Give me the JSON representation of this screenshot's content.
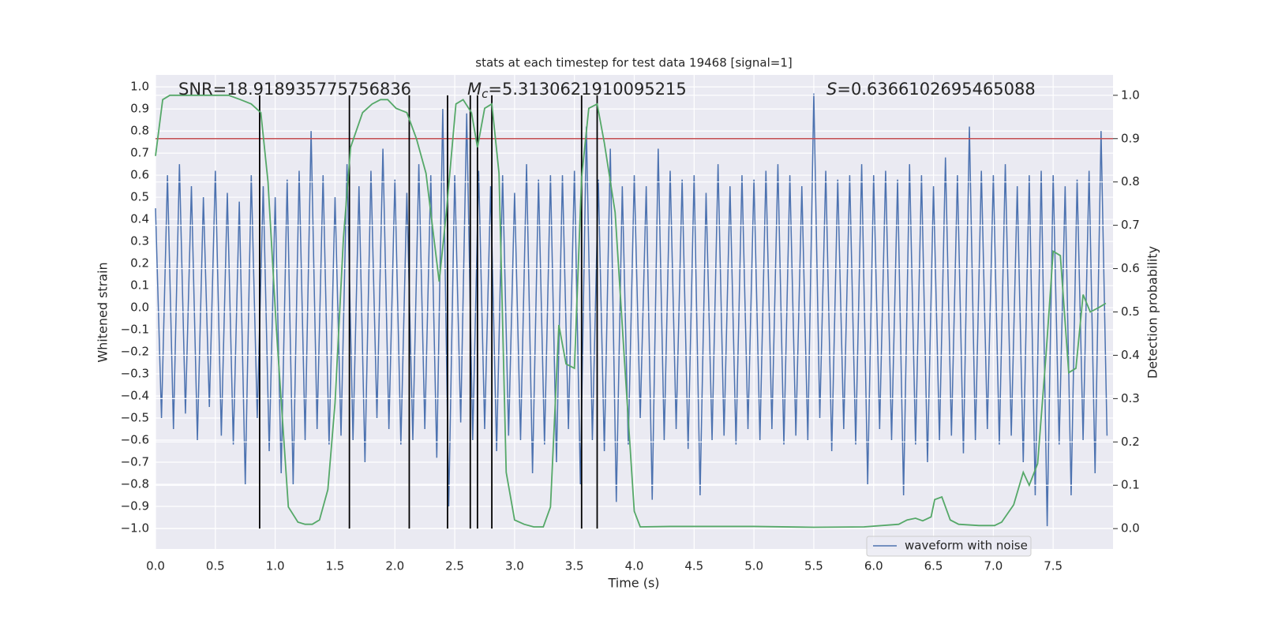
{
  "chart_data": {
    "type": "line",
    "title": "stats at each timestep for test data 19468 [signal=1]",
    "xlabel": "Time (s)",
    "ylabel": "Whitened strain",
    "y2label": "Detection probability",
    "xlim": [
      0,
      8
    ],
    "ylim": [
      -1.093,
      1.054
    ],
    "y2lim": [
      -0.047,
      1.047
    ],
    "grid": true,
    "legend": "best",
    "xticks": [
      {
        "value": 0,
        "label": "0.0"
      },
      0.5,
      {
        "value": 1,
        "label": "1.0"
      },
      1.5,
      {
        "value": 2,
        "label": "2.0"
      },
      2.5,
      {
        "value": 3,
        "label": "3.0"
      },
      3.5,
      {
        "value": 4,
        "label": "4.0"
      },
      4.5,
      {
        "value": 5,
        "label": "5.0"
      },
      5.5,
      {
        "value": 6,
        "label": "6.0"
      },
      6.5,
      {
        "value": 7,
        "label": "7.0"
      },
      7.5
    ],
    "yticks": [
      {
        "value": -1,
        "label": "−1.0"
      },
      {
        "value": -0.9,
        "label": "−0.9"
      },
      {
        "value": -0.8,
        "label": "−0.8"
      },
      {
        "value": -0.7,
        "label": "−0.7"
      },
      {
        "value": -0.6,
        "label": "−0.6"
      },
      {
        "value": -0.5,
        "label": "−0.5"
      },
      {
        "value": -0.4,
        "label": "−0.4"
      },
      {
        "value": -0.3,
        "label": "−0.3"
      },
      {
        "value": -0.2,
        "label": "−0.2"
      },
      {
        "value": -0.1,
        "label": "−0.1"
      },
      {
        "value": 0,
        "label": "0.0"
      },
      0.1,
      0.2,
      0.3,
      0.4,
      0.5,
      0.6,
      0.7,
      0.8,
      0.9,
      {
        "value": 1,
        "label": "1.0"
      }
    ],
    "y2ticks": [
      {
        "value": 0,
        "label": "0.0"
      },
      0.1,
      0.2,
      0.3,
      0.4,
      0.5,
      0.6,
      0.7,
      0.8,
      0.9,
      {
        "value": 1,
        "label": "1.0"
      }
    ],
    "series": [
      {
        "name": "waveform with noise",
        "color": "#4c72b0",
        "x": [
          0,
          0.05,
          0.1,
          0.15,
          0.2,
          0.25,
          0.3,
          0.35,
          0.4,
          0.45,
          0.5,
          0.55,
          0.6,
          0.65,
          0.7,
          0.75,
          0.8,
          0.85,
          0.9,
          0.95,
          1,
          1.05,
          1.1,
          1.15,
          1.2,
          1.25,
          1.3,
          1.35,
          1.4,
          1.45,
          1.5,
          1.55,
          1.6,
          1.65,
          1.7,
          1.75,
          1.8,
          1.85,
          1.9,
          1.95,
          2,
          2.05,
          2.1,
          2.15,
          2.2,
          2.25,
          2.3,
          2.35,
          2.4,
          2.45,
          2.5,
          2.55,
          2.6,
          2.65,
          2.7,
          2.75,
          2.8,
          2.85,
          2.9,
          2.95,
          3,
          3.05,
          3.1,
          3.15,
          3.2,
          3.25,
          3.3,
          3.35,
          3.4,
          3.45,
          3.5,
          3.55,
          3.6,
          3.65,
          3.7,
          3.75,
          3.8,
          3.85,
          3.9,
          3.95,
          4,
          4.05,
          4.1,
          4.15,
          4.2,
          4.25,
          4.3,
          4.35,
          4.4,
          4.45,
          4.5,
          4.55,
          4.6,
          4.65,
          4.7,
          4.75,
          4.8,
          4.85,
          4.9,
          4.95,
          5,
          5.05,
          5.1,
          5.15,
          5.2,
          5.25,
          5.3,
          5.35,
          5.4,
          5.45,
          5.5,
          5.55,
          5.6,
          5.65,
          5.7,
          5.75,
          5.8,
          5.85,
          5.9,
          5.95,
          6,
          6.05,
          6.1,
          6.15,
          6.2,
          6.25,
          6.3,
          6.35,
          6.4,
          6.45,
          6.5,
          6.55,
          6.6,
          6.65,
          6.7,
          6.75,
          6.8,
          6.85,
          6.9,
          6.95,
          7,
          7.05,
          7.1,
          7.15,
          7.2,
          7.25,
          7.3,
          7.35,
          7.4,
          7.45,
          7.5,
          7.55,
          7.6,
          7.65,
          7.7,
          7.75,
          7.8,
          7.85,
          7.9,
          7.95
        ],
        "values": [
          0.45,
          -0.5,
          0.6,
          -0.55,
          0.65,
          -0.48,
          0.55,
          -0.6,
          0.5,
          -0.45,
          0.62,
          -0.58,
          0.52,
          -0.62,
          0.48,
          -0.8,
          0.6,
          -0.5,
          0.55,
          -0.65,
          0.5,
          -0.75,
          0.58,
          -0.8,
          0.62,
          -0.6,
          0.8,
          -0.55,
          0.6,
          -0.62,
          0.5,
          -0.58,
          0.65,
          -0.6,
          0.55,
          -0.7,
          0.62,
          -0.5,
          0.72,
          -0.55,
          0.58,
          -0.62,
          0.52,
          -0.6,
          0.65,
          -0.55,
          0.6,
          -0.68,
          0.9,
          -0.9,
          0.6,
          -0.52,
          0.88,
          -0.6,
          0.62,
          -0.55,
          0.55,
          -0.65,
          0.6,
          -0.58,
          0.52,
          -0.6,
          0.65,
          -0.75,
          0.58,
          -0.62,
          0.6,
          -0.7,
          0.6,
          -0.55,
          0.62,
          -0.8,
          0.82,
          -0.6,
          0.58,
          -0.65,
          0.72,
          -0.88,
          0.55,
          -0.62,
          0.6,
          -0.5,
          0.55,
          -0.87,
          0.72,
          -0.6,
          0.62,
          -0.55,
          0.58,
          -0.64,
          0.6,
          -0.85,
          0.52,
          -0.6,
          0.65,
          -0.58,
          0.55,
          -0.62,
          0.6,
          -0.55,
          0.58,
          -0.6,
          0.62,
          -0.55,
          0.65,
          -0.62,
          0.6,
          -0.58,
          0.55,
          -0.6,
          0.97,
          -0.5,
          0.62,
          -0.65,
          0.58,
          -0.55,
          0.6,
          -0.62,
          0.65,
          -0.8,
          0.6,
          -0.55,
          0.62,
          -0.6,
          0.58,
          -0.85,
          0.65,
          -0.62,
          0.6,
          -0.7,
          0.55,
          -0.6,
          0.68,
          -0.58,
          0.6,
          -0.66,
          0.82,
          -0.6,
          0.62,
          -0.55,
          0.6,
          -0.62,
          0.65,
          -0.58,
          0.55,
          -0.7,
          0.6,
          -0.85,
          0.62,
          -0.99,
          0.6,
          -0.62,
          0.55,
          -0.85,
          0.58,
          -0.6,
          0.62,
          -0.75,
          0.8,
          -0.58
        ]
      }
    ],
    "probability": {
      "color": "#55a868",
      "axis": "y2",
      "x": [
        0,
        0.06,
        0.12,
        0.61,
        0.71,
        0.8,
        0.88,
        0.94,
        1.01,
        1.11,
        1.19,
        1.25,
        1.31,
        1.37,
        1.44,
        1.5,
        1.57,
        1.63,
        1.73,
        1.81,
        1.88,
        1.94,
        2.01,
        2.1,
        2.18,
        2.26,
        2.37,
        2.43,
        2.51,
        2.57,
        2.64,
        2.69,
        2.75,
        2.81,
        2.87,
        2.93,
        3,
        3.08,
        3.16,
        3.24,
        3.3,
        3.37,
        3.43,
        3.5,
        3.56,
        3.62,
        3.69,
        3.75,
        3.84,
        3.92,
        4,
        4.05,
        4.3,
        4.6,
        5,
        5.5,
        5.92,
        6.21,
        6.28,
        6.35,
        6.41,
        6.48,
        6.51,
        6.57,
        6.64,
        6.71,
        6.88,
        7.01,
        7.07,
        7.17,
        7.25,
        7.3,
        7.37,
        7.44,
        7.5,
        7.56,
        7.63,
        7.69,
        7.75,
        7.81,
        7.88,
        7.94
      ],
      "values": [
        0.86,
        0.99,
        1,
        1,
        0.99,
        0.98,
        0.96,
        0.8,
        0.46,
        0.05,
        0.015,
        0.01,
        0.01,
        0.02,
        0.09,
        0.29,
        0.67,
        0.88,
        0.96,
        0.98,
        0.99,
        0.99,
        0.97,
        0.96,
        0.9,
        0.82,
        0.57,
        0.73,
        0.98,
        0.99,
        0.96,
        0.88,
        0.97,
        0.98,
        0.82,
        0.13,
        0.02,
        0.01,
        0.004,
        0.004,
        0.05,
        0.47,
        0.38,
        0.37,
        0.81,
        0.97,
        0.98,
        0.89,
        0.73,
        0.38,
        0.04,
        0.004,
        0.005,
        0.005,
        0.005,
        0.003,
        0.004,
        0.01,
        0.02,
        0.024,
        0.018,
        0.027,
        0.067,
        0.073,
        0.02,
        0.01,
        0.007,
        0.007,
        0.015,
        0.055,
        0.13,
        0.1,
        0.15,
        0.4,
        0.64,
        0.63,
        0.36,
        0.37,
        0.54,
        0.5,
        0.51,
        0.52
      ]
    },
    "threshold": {
      "value": 0.9,
      "axis": "y2",
      "color": "#c44e52"
    },
    "vlines": {
      "x": [
        0.87,
        1.62,
        2.12,
        2.44,
        2.63,
        2.69,
        2.81,
        3.56,
        3.69
      ],
      "ymin": 0,
      "ymax": 1,
      "axis": "y2",
      "color": "#000000"
    },
    "annotations": [
      {
        "text": "SNR=18.918935775756836"
      },
      {
        "symbol": "M",
        "subscript": "c",
        "text": "=5.3130621910095215"
      },
      {
        "symbol": "S",
        "text": "=0.6366102695465088"
      }
    ]
  }
}
